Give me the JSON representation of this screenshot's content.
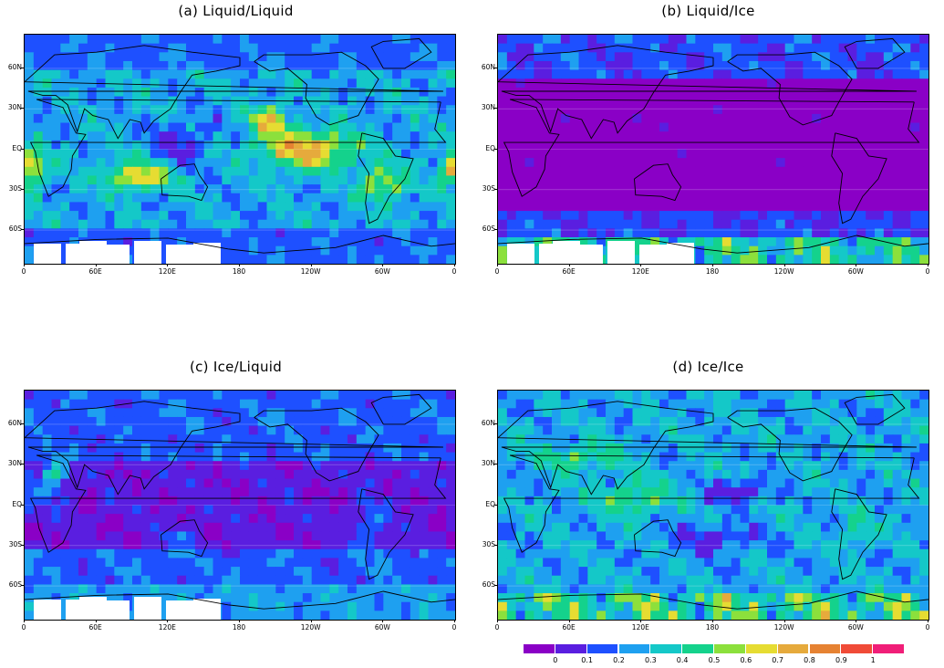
{
  "panels": [
    {
      "id": "a",
      "title": "(a) Liquid/Liquid",
      "base": 0.38,
      "pattern": "liqliq"
    },
    {
      "id": "b",
      "title": "(b) Liquid/Ice",
      "base": 0.06,
      "pattern": "liqice"
    },
    {
      "id": "c",
      "title": "(c) Ice/Liquid",
      "base": 0.22,
      "pattern": "iceliq"
    },
    {
      "id": "d",
      "title": "(d) Ice/Ice",
      "base": 0.38,
      "pattern": "iceice"
    }
  ],
  "axes": {
    "lat_labels": [
      "60N",
      "30N",
      "EQ",
      "30S",
      "60S"
    ],
    "lon_labels": [
      "0",
      "60E",
      "120E",
      "180",
      "120W",
      "60W",
      "0"
    ]
  },
  "colorbar": {
    "colors": [
      "#8a00c6",
      "#5a1ee0",
      "#1e50ff",
      "#1ea0f0",
      "#14c8c8",
      "#14d28c",
      "#8ce03c",
      "#e6dc32",
      "#e6aa3c",
      "#e68232",
      "#f04b37",
      "#f01e78"
    ],
    "labels": [
      "0",
      "0.1",
      "0.2",
      "0.3",
      "0.4",
      "0.5",
      "0.6",
      "0.7",
      "0.8",
      "0.9",
      "1"
    ]
  }
}
